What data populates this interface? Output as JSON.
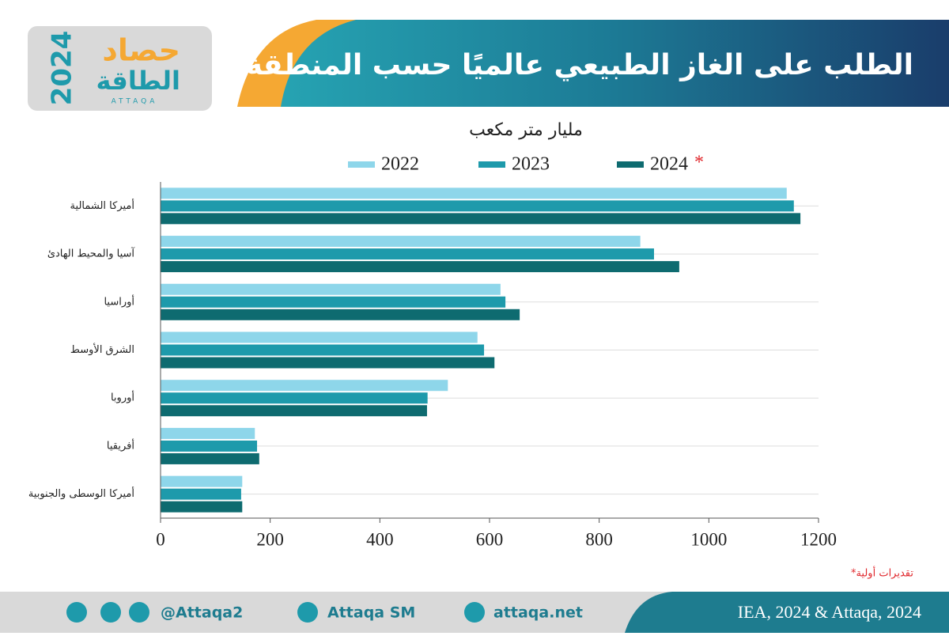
{
  "header": {
    "title": "الطلب على الغاز الطبيعي عالميًا حسب المنطقة",
    "logo": {
      "name": "حصاد",
      "year": "2024",
      "brand": "الطاقة",
      "latin": "ATTAQA"
    }
  },
  "chart_data": {
    "type": "hbar",
    "subtitle": "مليار متر مكعب",
    "categories": [
      "أميركا الشمالية",
      "آسيا والمحيط الهادئ",
      "أوراسيا",
      "الشرق الأوسط",
      "أوروبا",
      "أفريقيا",
      "أميركا الوسطى والجنوبية"
    ],
    "series": [
      {
        "name": "2022",
        "color": "#8ed6ea",
        "values": [
          1142,
          875,
          620,
          578,
          524,
          172,
          149
        ]
      },
      {
        "name": "2023",
        "color": "#1e9aab",
        "values": [
          1155,
          900,
          629,
          590,
          487,
          176,
          147
        ]
      },
      {
        "name": "2024",
        "color": "#0e6b70",
        "values": [
          1167,
          946,
          655,
          609,
          486,
          180,
          149
        ]
      }
    ],
    "estimate_marker": "*",
    "xlim": [
      0,
      1200
    ],
    "xticks": [
      0,
      200,
      400,
      600,
      800,
      1000,
      1200
    ],
    "footnote": "*تقديرات أولية"
  },
  "footer": {
    "social": "@Attaqa2",
    "youtube": "Attaqa SM",
    "site": "attaqa.net",
    "source": "IEA, 2024 & Attaqa, 2024"
  }
}
